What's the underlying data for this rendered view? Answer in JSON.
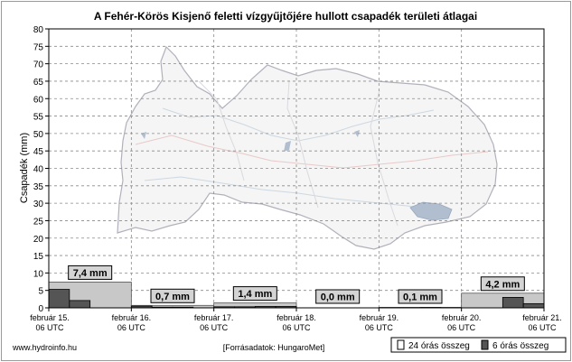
{
  "chart_data": {
    "type": "bar",
    "title": "A Fehér-Körös Kisjenő feletti vízgyűjtőjére hullott csapadék területi átlagai",
    "ylabel": "Csapadék (mm)",
    "ylim": [
      0,
      80
    ],
    "yticks": [
      0,
      5,
      10,
      15,
      20,
      25,
      30,
      35,
      40,
      45,
      50,
      55,
      60,
      65,
      70,
      75,
      80
    ],
    "grid": true,
    "x_ticks": [
      {
        "line1": "február 15.",
        "line2": "06 UTC"
      },
      {
        "line1": "február 16.",
        "line2": "06 UTC"
      },
      {
        "line1": "február 17.",
        "line2": "06 UTC"
      },
      {
        "line1": "február 18.",
        "line2": "06 UTC"
      },
      {
        "line1": "február 19.",
        "line2": "06 UTC"
      },
      {
        "line1": "február 20.",
        "line2": "06 UTC"
      },
      {
        "line1": "február 21.",
        "line2": "06 UTC"
      }
    ],
    "series": [
      {
        "name": "24 órás összeg",
        "color": "#c8c8c8",
        "values": [
          7.4,
          0.7,
          1.4,
          0.0,
          0.1,
          4.2
        ],
        "labels": [
          "7,4 mm",
          "0,7 mm",
          "1,4 mm",
          "0,0 mm",
          "0,1 mm",
          "4,2 mm"
        ]
      },
      {
        "name": "6 órás összeg",
        "color": "#555555",
        "values": [
          5.3,
          2.1,
          0.0,
          0.0,
          0.5,
          0.2,
          0.2,
          0.0,
          0.3,
          0.3,
          0.4,
          0.4,
          0.0,
          0.0,
          0.0,
          0.0,
          0.0,
          0.0,
          0.1,
          0.0,
          0.0,
          0.0,
          3.0,
          1.2
        ]
      }
    ],
    "legend_position": "bottom-right"
  },
  "footer": {
    "site": "www.hydroinfo.hu",
    "source": "[Forrásadatok: HungaroMet]"
  },
  "legend": {
    "item1": "24 órás összeg",
    "item2": "6 órás összeg"
  }
}
